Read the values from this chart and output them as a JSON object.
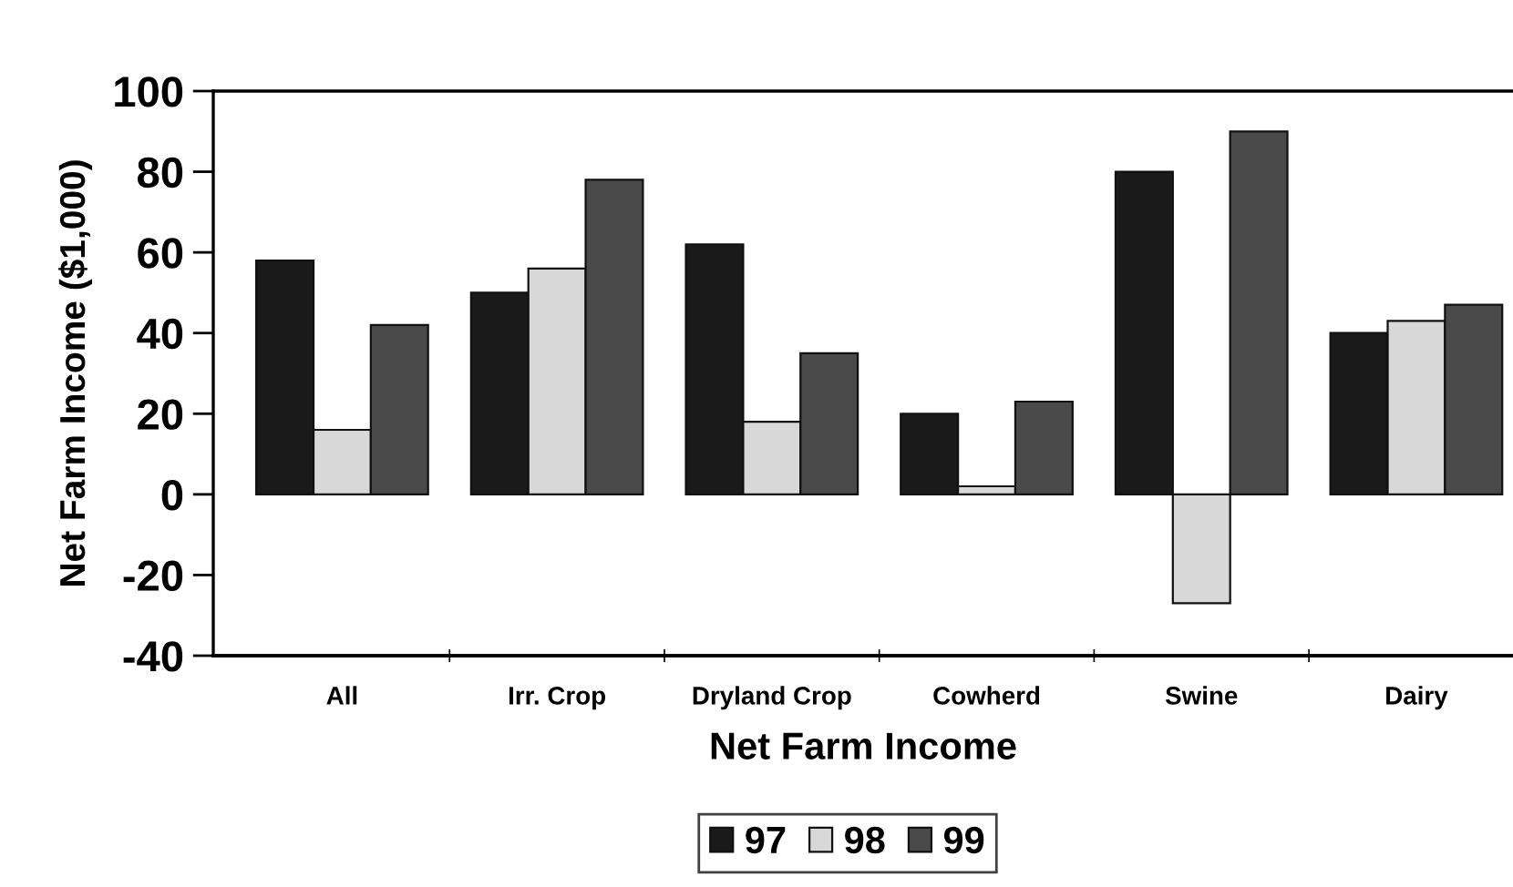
{
  "chart_data": {
    "type": "bar",
    "xlabel": "Net Farm Income",
    "ylabel": "Net Farm Income ($1,000)",
    "categories": [
      "All",
      "Irr. Crop",
      "Dryland Crop",
      "Cowherd",
      "Swine",
      "Dairy"
    ],
    "series": [
      {
        "name": "97",
        "color": "#1a1a1a",
        "values": [
          58,
          50,
          62,
          20,
          80,
          40
        ]
      },
      {
        "name": "98",
        "color": "#d8d8d8",
        "values": [
          16,
          56,
          18,
          2,
          -27,
          43
        ]
      },
      {
        "name": "99",
        "color": "#4a4a4a",
        "values": [
          42,
          78,
          35,
          23,
          90,
          47
        ]
      }
    ],
    "ylim": [
      -40,
      100
    ],
    "yticks": [
      -40,
      -20,
      0,
      20,
      40,
      60,
      80,
      100
    ],
    "grid": false,
    "legend": "bottom"
  }
}
